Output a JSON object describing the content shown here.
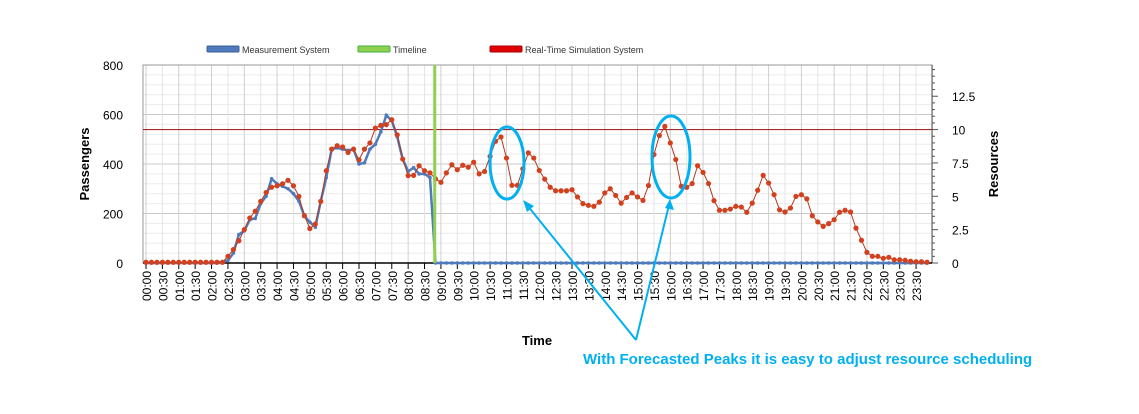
{
  "chart_data": {
    "type": "line",
    "title": "",
    "xlabel": "Time",
    "ylabel": "Passengers",
    "y2label": "Resources",
    "ylim": [
      0,
      800
    ],
    "y2lim": [
      0,
      14.84
    ],
    "yticks": [
      "0",
      "200",
      "400",
      "600",
      "800"
    ],
    "y2ticks": [
      "0",
      "2.5",
      "5",
      "7.5",
      "10",
      "12.5"
    ],
    "y2tick_values": [
      0,
      2.5,
      5,
      7.5,
      10,
      12.5
    ],
    "x_interval_minutes": 10,
    "x_tick_labels": [
      "00:00",
      "00:30",
      "01:00",
      "01:30",
      "02:00",
      "02:30",
      "03:00",
      "03:30",
      "04:00",
      "04:30",
      "05:00",
      "05:30",
      "06:00",
      "06:30",
      "07:00",
      "07:30",
      "08:00",
      "08:30",
      "09:00",
      "09:30",
      "10:00",
      "10:30",
      "11:00",
      "11:30",
      "12:00",
      "12:30",
      "13:00",
      "13:30",
      "14:00",
      "14:30",
      "15:00",
      "15:30",
      "16:00",
      "16:30",
      "17:00",
      "17:30",
      "18:00",
      "18:30",
      "19:00",
      "19:30",
      "20:00",
      "20:30",
      "21:00",
      "21:30",
      "22:00",
      "22:30",
      "23:00",
      "23:30"
    ],
    "grid": true,
    "legend_position": "top",
    "legend": [
      "Measurement System",
      "Timeline",
      "Real-Time Simulation System"
    ],
    "colors": {
      "measurement": "#4f7bbd",
      "timeline": "#8fd14f",
      "simulation": "#d2401e",
      "threshold": "#a52a2a",
      "annotation": "#00b0f0"
    },
    "timeline_minutes": 525,
    "threshold_resources": 10,
    "series": [
      {
        "name": "Measurement System",
        "values": [
          0,
          0,
          0,
          0,
          0,
          0,
          0,
          0,
          0,
          0,
          0,
          0,
          0,
          0,
          5,
          10,
          40,
          115,
          130,
          175,
          180,
          240,
          270,
          340,
          320,
          310,
          300,
          280,
          250,
          190,
          165,
          145,
          250,
          345,
          460,
          465,
          460,
          455,
          460,
          400,
          405,
          460,
          480,
          530,
          597,
          575,
          510,
          420,
          370,
          385,
          360,
          360,
          345,
          0,
          0,
          0,
          0,
          0,
          0,
          0,
          0,
          0,
          0,
          0,
          0,
          0,
          0,
          0,
          0,
          0,
          0,
          0,
          0,
          0,
          0,
          0,
          0,
          0,
          0,
          0,
          0,
          0,
          0,
          0,
          0,
          0,
          0,
          0,
          0,
          0,
          0,
          0,
          0,
          0,
          0,
          0,
          0,
          0,
          0,
          0,
          0,
          0,
          0,
          0,
          0,
          0,
          0,
          0,
          0,
          0,
          0,
          0,
          0,
          0,
          0,
          0,
          0,
          0,
          0,
          0,
          0,
          0,
          0,
          0,
          0,
          0,
          0,
          0,
          0,
          0,
          0,
          0,
          0,
          0,
          0,
          0,
          0,
          0,
          0,
          0,
          0,
          0,
          0,
          0
        ]
      },
      {
        "name": "Real-Time Simulation System",
        "values": [
          3,
          3,
          3,
          3,
          3,
          3,
          3,
          3,
          3,
          3,
          3,
          3,
          3,
          3,
          3,
          27,
          54,
          90,
          135,
          182,
          209,
          249,
          285,
          306,
          312,
          320,
          334,
          312,
          269,
          191,
          139,
          157,
          249,
          373,
          460,
          474,
          469,
          447,
          460,
          417,
          460,
          485,
          545,
          556,
          559,
          579,
          518,
          420,
          353,
          354,
          393,
          373,
          364,
          340,
          326,
          364,
          397,
          377,
          395,
          387,
          407,
          360,
          370,
          431,
          492,
          509,
          424,
          314,
          314,
          381,
          445,
          424,
          374,
          339,
          306,
          292,
          292,
          292,
          296,
          267,
          240,
          233,
          229,
          246,
          283,
          300,
          273,
          242,
          265,
          283,
          267,
          253,
          313,
          438,
          515,
          552,
          485,
          418,
          310,
          306,
          321,
          393,
          366,
          321,
          252,
          213,
          213,
          218,
          229,
          226,
          205,
          242,
          294,
          354,
          323,
          276,
          215,
          206,
          222,
          269,
          276,
          259,
          191,
          166,
          148,
          159,
          175,
          205,
          213,
          206,
          141,
          92,
          43,
          27,
          27,
          19,
          23,
          13,
          13,
          11,
          7,
          5,
          5,
          3
        ]
      }
    ],
    "annotation": "With Forecasted Peaks it is easy to adjust resource scheduling"
  }
}
